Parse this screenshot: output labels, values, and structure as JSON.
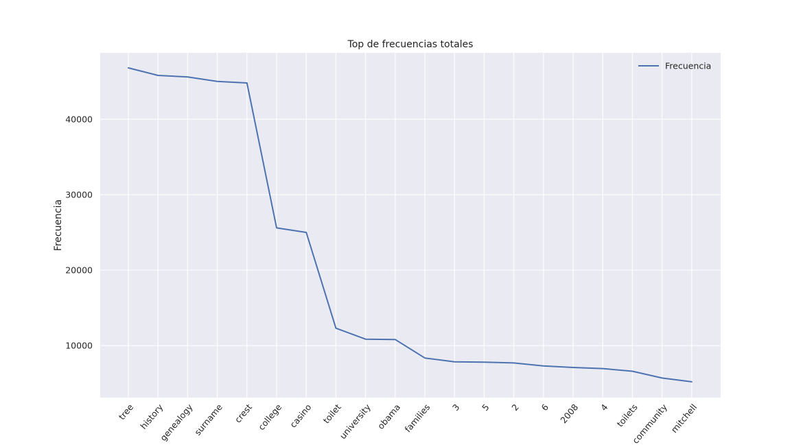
{
  "chart_data": {
    "type": "line",
    "title": "Top de frecuencias totales",
    "xlabel": "",
    "ylabel": "Frecuencia",
    "categories": [
      "tree",
      "history",
      "genealogy",
      "surname",
      "crest",
      "college",
      "casino",
      "toilet",
      "university",
      "obama",
      "families",
      "3",
      "5",
      "2",
      "6",
      "2008",
      "4",
      "toilets",
      "community",
      "mitchell"
    ],
    "series": [
      {
        "name": "Frecuencia",
        "color": "#4c72b0",
        "values": [
          46800,
          45800,
          45600,
          45000,
          44800,
          25600,
          25000,
          12300,
          10850,
          10800,
          8350,
          7850,
          7800,
          7700,
          7300,
          7100,
          6950,
          6600,
          5700,
          5200
        ]
      }
    ],
    "yticks": [
      10000,
      20000,
      30000,
      40000
    ],
    "ylim": [
      3100,
      48800
    ],
    "grid": true,
    "legend_position": "top-right",
    "background": "#eaeaf2",
    "grid_color": "#ffffff"
  }
}
